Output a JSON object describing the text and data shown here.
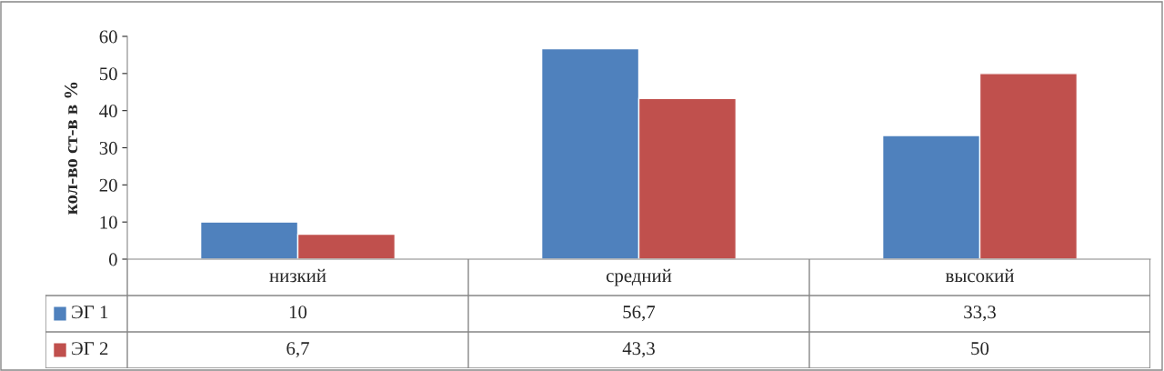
{
  "chart_data": {
    "type": "bar",
    "ylabel": "кол-во ст-в в %",
    "categories": [
      "низкий",
      "средний",
      "высокий"
    ],
    "series": [
      {
        "name": "ЭГ 1",
        "color": "#4f81bd",
        "values": [
          10,
          56.7,
          33.3
        ],
        "value_labels": [
          "10",
          "56,7",
          "33,3"
        ]
      },
      {
        "name": "ЭГ 2",
        "color": "#c0504d",
        "values": [
          6.7,
          43.3,
          50
        ],
        "value_labels": [
          "6,7",
          "43,3",
          "50"
        ]
      }
    ],
    "ylim": [
      0,
      60
    ],
    "yticks": [
      0,
      10,
      20,
      30,
      40,
      50,
      60
    ],
    "grid": false,
    "legend": "bottom left"
  }
}
